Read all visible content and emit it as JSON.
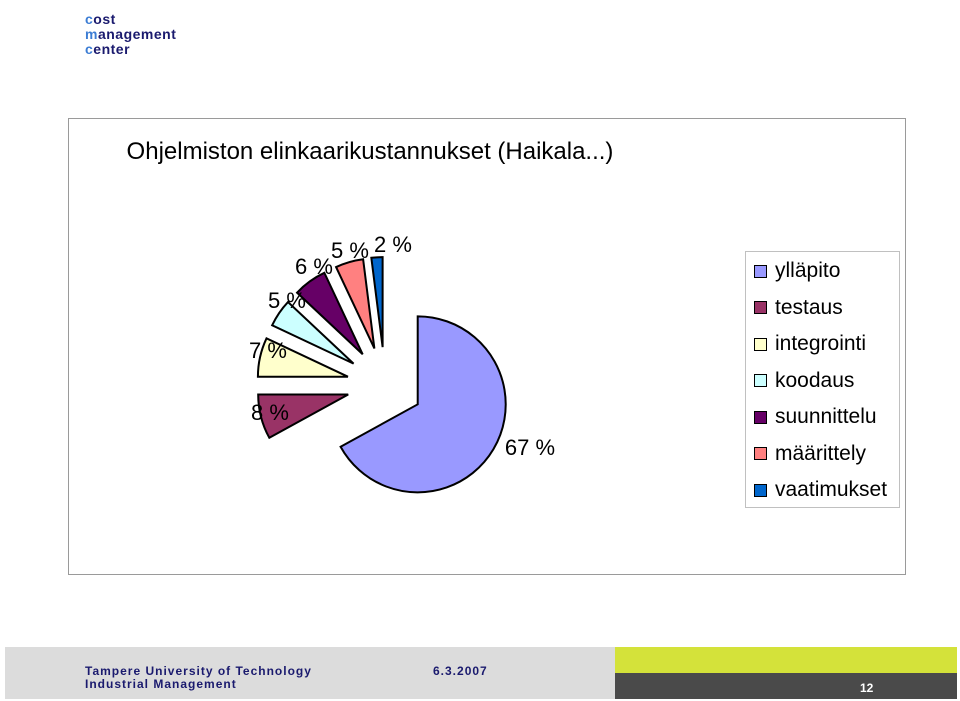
{
  "logo": {
    "line1_first": "c",
    "line1_rest": "ost",
    "line2_first": "m",
    "line2_rest": "anagement",
    "line3_first": "c",
    "line3_rest": "enter"
  },
  "footer": {
    "university": "Tampere University of Technology",
    "department": "Industrial Management",
    "date": "6.3.2007",
    "page": "12"
  },
  "chart_data": {
    "type": "pie",
    "style": "exploded 3D-look pie",
    "title": "Ohjelmiston elinkaarikustannukset (Haikala...)",
    "legend_position": "right",
    "slices": [
      {
        "name": "ylläpito",
        "value": 67,
        "label": "67 %",
        "color": "#9999ff"
      },
      {
        "name": "testaus",
        "value": 8,
        "label": "8 %",
        "color": "#993366"
      },
      {
        "name": "integrointi",
        "value": 7,
        "label": "7 %",
        "color": "#ffffcc"
      },
      {
        "name": "koodaus",
        "value": 5,
        "label": "5 %",
        "color": "#ccffff"
      },
      {
        "name": "suunnittelu",
        "value": 6,
        "label": "6 %",
        "color": "#660066"
      },
      {
        "name": "määrittely",
        "value": 5,
        "label": "5 %",
        "color": "#ff8080"
      },
      {
        "name": "vaatimukset",
        "value": 2,
        "label": "2 %",
        "color": "#0066cc"
      }
    ]
  }
}
